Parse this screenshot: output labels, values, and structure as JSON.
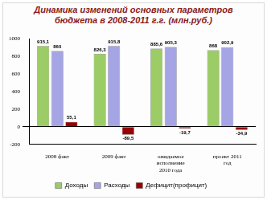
{
  "chart_data": {
    "type": "bar",
    "title": "Динамика изменений основных параметров бюджета в 2008-2011 г.г. (млн.руб.)",
    "categories": [
      "2008 факт",
      "2009 факт",
      "ожидаемое исполнение 2010 года",
      "проект 2011 год"
    ],
    "series": [
      {
        "name": "Доходы",
        "color": "#9bcc66",
        "values": [
          915.1,
          826.3,
          885.6,
          868
        ],
        "value_labels": [
          "915,1",
          "826,3",
          "885,6",
          "868"
        ]
      },
      {
        "name": "Расходы",
        "color": "#a5a5e6",
        "values": [
          860,
          915.8,
          905.3,
          902.9
        ],
        "value_labels": [
          "860",
          "915,8",
          "905,3",
          "902,9"
        ]
      },
      {
        "name": "Дефицит(профицит)",
        "color": "#990000",
        "values": [
          55.1,
          -89.5,
          -19.7,
          -34.9
        ],
        "value_labels": [
          "55,1",
          "-89,5",
          "-19,7",
          "-34,9"
        ]
      }
    ],
    "ylim": [
      -200,
      1000
    ],
    "yticks": [
      -200,
      0,
      200,
      400,
      600,
      800,
      1000
    ],
    "grid": false,
    "legend": "bottom",
    "data_labels": true
  }
}
